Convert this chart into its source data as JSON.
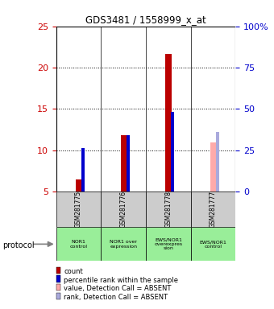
{
  "title": "GDS3481 / 1558999_x_at",
  "samples": [
    "GSM281775",
    "GSM281776",
    "GSM281778",
    "GSM281777"
  ],
  "protocols": [
    "NOR1\ncontrol",
    "NOR1 over\nexpression",
    "EWS/NOR1\noverexpres\nsion",
    "EWS/NOR1\ncontrol"
  ],
  "red_bars": [
    6.5,
    11.8,
    21.7,
    null
  ],
  "blue_bars": [
    10.3,
    11.85,
    14.6,
    null
  ],
  "pink_bars": [
    null,
    null,
    null,
    10.9
  ],
  "purple_bars": [
    null,
    null,
    null,
    12.2
  ],
  "ylim_left": [
    5,
    25
  ],
  "ylim_right": [
    0,
    100
  ],
  "yticks_left": [
    5,
    10,
    15,
    20,
    25
  ],
  "yticks_right": [
    0,
    25,
    50,
    75,
    100
  ],
  "yticklabels_right": [
    "0",
    "25",
    "50",
    "75",
    "100%"
  ],
  "left_tick_color": "#cc0000",
  "right_tick_color": "#0000cc",
  "red_color": "#bb0000",
  "blue_color": "#0000cc",
  "pink_color": "#ffaaaa",
  "purple_color": "#aaaadd",
  "protocol_bg": "#99ee99",
  "sample_bg_color": "#cccccc",
  "grid_dotted_at": [
    10,
    15,
    20
  ],
  "legend_items": [
    {
      "color": "#bb0000",
      "label": "count"
    },
    {
      "color": "#0000cc",
      "label": "percentile rank within the sample"
    },
    {
      "color": "#ffaaaa",
      "label": "value, Detection Call = ABSENT"
    },
    {
      "color": "#aaaadd",
      "label": "rank, Detection Call = ABSENT"
    }
  ]
}
